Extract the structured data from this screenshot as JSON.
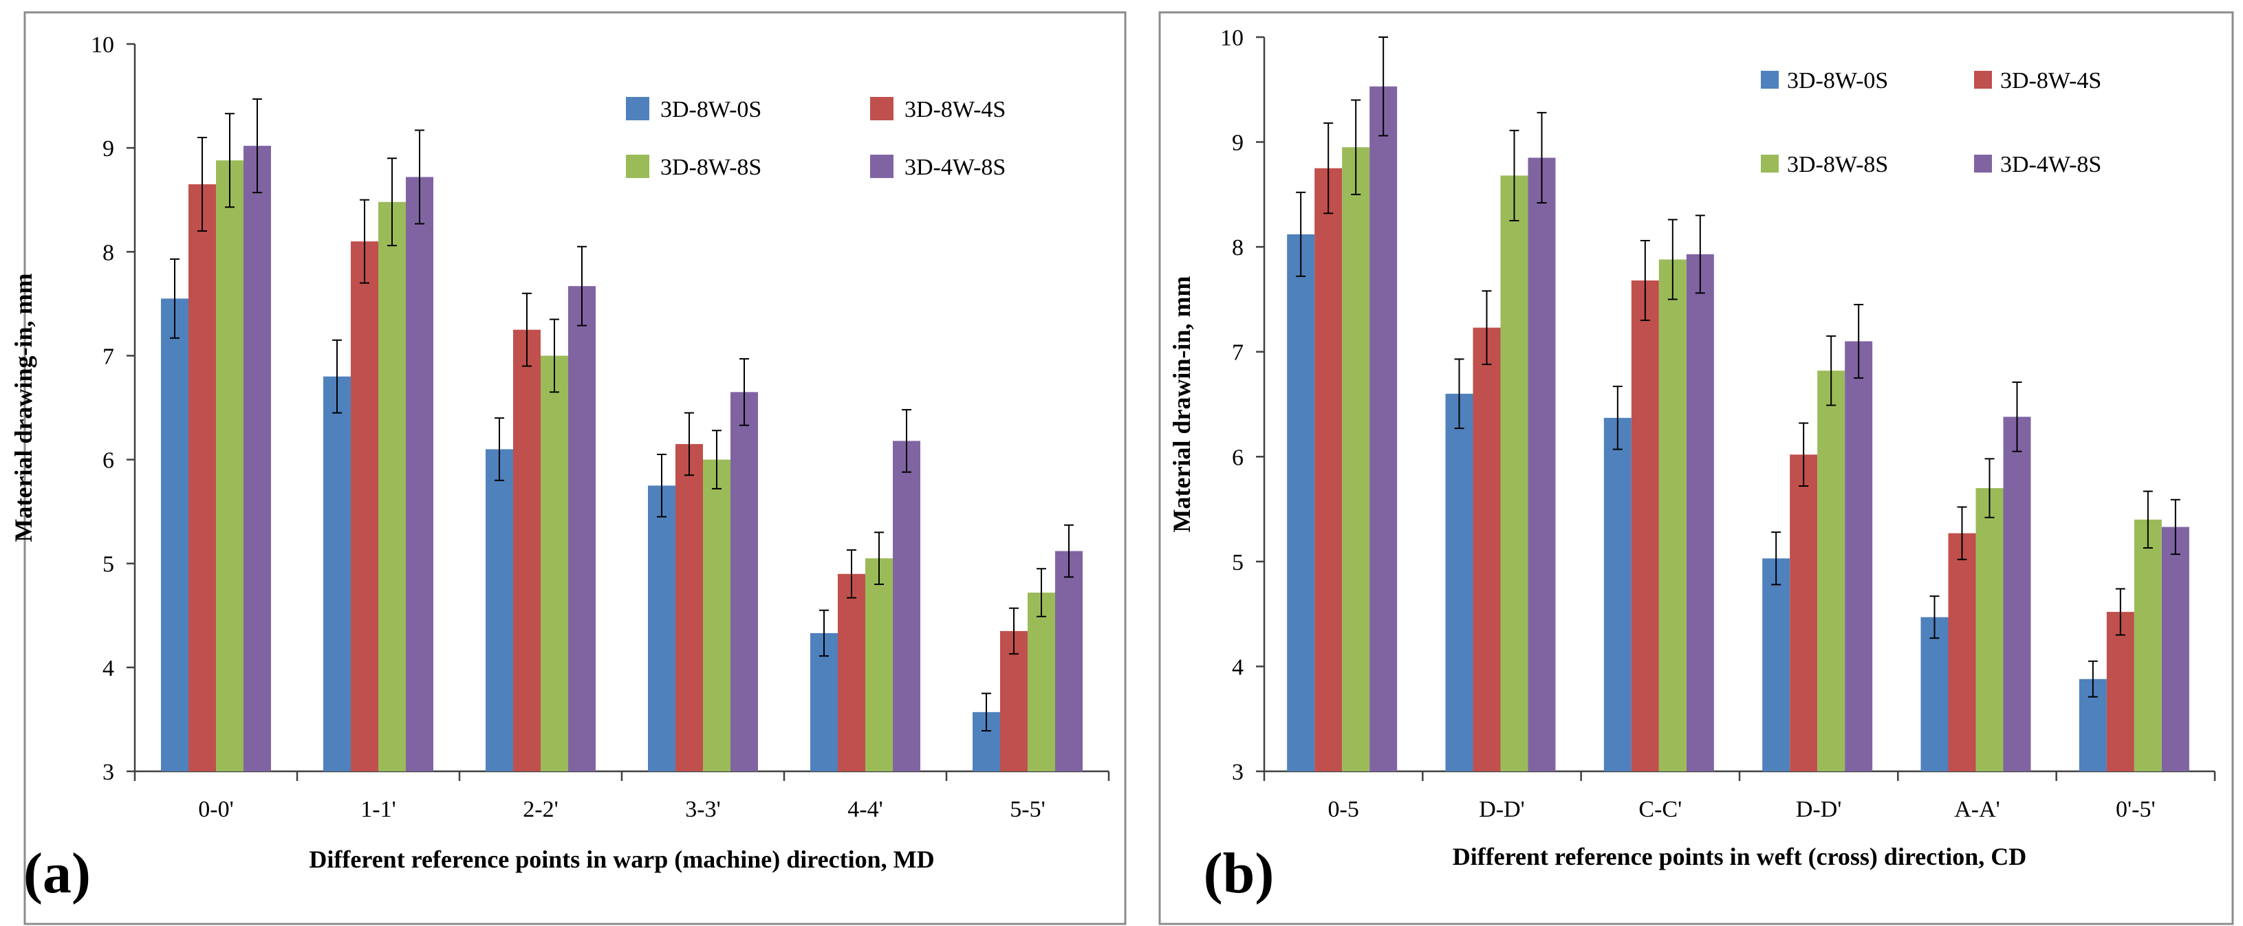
{
  "chart_data": [
    {
      "type": "bar",
      "panel_label": "(a)",
      "title": "",
      "xlabel": "Different reference points in warp (machine) direction, MD",
      "ylabel": "Material drawing-in,  mm",
      "ylim": [
        3,
        10
      ],
      "yticks": [
        "3",
        "4",
        "5",
        "6",
        "7",
        "8",
        "9",
        "10"
      ],
      "categories": [
        "0-0'",
        "1-1'",
        "2-2'",
        "3-3'",
        "4-4'",
        "5-5'"
      ],
      "legend_position": "top-right",
      "series": [
        {
          "name": "3D-8W-0S",
          "color": "#4F81BD",
          "values": [
            7.55,
            6.8,
            6.1,
            5.75,
            4.33,
            3.57
          ],
          "errors": [
            0.38,
            0.35,
            0.3,
            0.3,
            0.22,
            0.18
          ]
        },
        {
          "name": "3D-8W-4S",
          "color": "#C0504D",
          "values": [
            8.65,
            8.1,
            7.25,
            6.15,
            4.9,
            4.35
          ],
          "errors": [
            0.45,
            0.4,
            0.35,
            0.3,
            0.23,
            0.22
          ]
        },
        {
          "name": "3D-8W-8S",
          "color": "#9BBB59",
          "values": [
            8.88,
            8.48,
            7.0,
            6.0,
            5.05,
            4.72
          ],
          "errors": [
            0.45,
            0.42,
            0.35,
            0.28,
            0.25,
            0.23
          ]
        },
        {
          "name": "3D-4W-8S",
          "color": "#8064A2",
          "values": [
            9.02,
            8.72,
            7.67,
            6.65,
            6.18,
            5.12
          ],
          "errors": [
            0.45,
            0.45,
            0.38,
            0.32,
            0.3,
            0.25
          ]
        }
      ]
    },
    {
      "type": "bar",
      "panel_label": "(b)",
      "title": "",
      "xlabel": "Different reference points in weft (cross) direction, CD",
      "ylabel": "Material drawin-in,  mm",
      "ylim": [
        3,
        10
      ],
      "yticks": [
        "3",
        "4",
        "5",
        "6",
        "7",
        "8",
        "9",
        "10"
      ],
      "categories": [
        "0-5",
        "D-D'",
        "C-C'",
        "D-D'",
        "A-A'",
        "0'-5'"
      ],
      "legend_position": "top-right",
      "series": [
        {
          "name": "3D-8W-0S",
          "color": "#4F81BD",
          "values": [
            8.12,
            6.6,
            6.37,
            5.03,
            4.47,
            3.88
          ],
          "errors": [
            0.4,
            0.33,
            0.3,
            0.25,
            0.2,
            0.17
          ]
        },
        {
          "name": "3D-8W-4S",
          "color": "#C0504D",
          "values": [
            8.75,
            7.23,
            7.68,
            6.02,
            5.27,
            4.52
          ],
          "errors": [
            0.43,
            0.35,
            0.38,
            0.3,
            0.25,
            0.22
          ]
        },
        {
          "name": "3D-8W-8S",
          "color": "#9BBB59",
          "values": [
            8.95,
            8.68,
            7.88,
            6.82,
            5.7,
            5.4
          ],
          "errors": [
            0.45,
            0.43,
            0.38,
            0.33,
            0.28,
            0.27
          ]
        },
        {
          "name": "3D-4W-8S",
          "color": "#8064A2",
          "values": [
            9.53,
            8.85,
            7.93,
            7.1,
            6.38,
            5.33
          ],
          "errors": [
            0.47,
            0.43,
            0.37,
            0.35,
            0.33,
            0.26
          ]
        }
      ]
    }
  ]
}
